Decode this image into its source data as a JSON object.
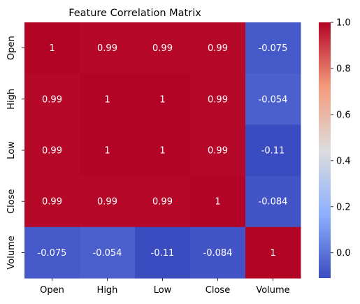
{
  "chart_data": {
    "type": "heatmap",
    "title": "Feature Correlation Matrix",
    "x_labels": [
      "Open",
      "High",
      "Low",
      "Close",
      "Volume"
    ],
    "y_labels": [
      "Open",
      "High",
      "Low",
      "Close",
      "Volume"
    ],
    "values": [
      [
        1,
        0.99,
        0.99,
        0.99,
        -0.075
      ],
      [
        0.99,
        1,
        1,
        0.99,
        -0.054
      ],
      [
        0.99,
        1,
        1,
        0.99,
        -0.11
      ],
      [
        0.99,
        0.99,
        0.99,
        1,
        -0.084
      ],
      [
        -0.075,
        -0.054,
        -0.11,
        -0.084,
        1
      ]
    ],
    "annotations": [
      [
        "1",
        "0.99",
        "0.99",
        "0.99",
        "-0.075"
      ],
      [
        "0.99",
        "1",
        "1",
        "0.99",
        "-0.054"
      ],
      [
        "0.99",
        "1",
        "1",
        "0.99",
        "-0.11"
      ],
      [
        "0.99",
        "0.99",
        "0.99",
        "1",
        "-0.084"
      ],
      [
        "-0.075",
        "-0.054",
        "-0.11",
        "-0.084",
        "1"
      ]
    ],
    "colormap": "coolwarm",
    "color_range": [
      -0.11,
      1.0
    ],
    "colorbar_ticks": [
      "1.0",
      "0.8",
      "0.6",
      "0.4",
      "0.2",
      "0.0"
    ],
    "colorbar_tick_values": [
      1.0,
      0.8,
      0.6,
      0.4,
      0.2,
      0.0
    ],
    "annotation_color": "#ffffff"
  }
}
